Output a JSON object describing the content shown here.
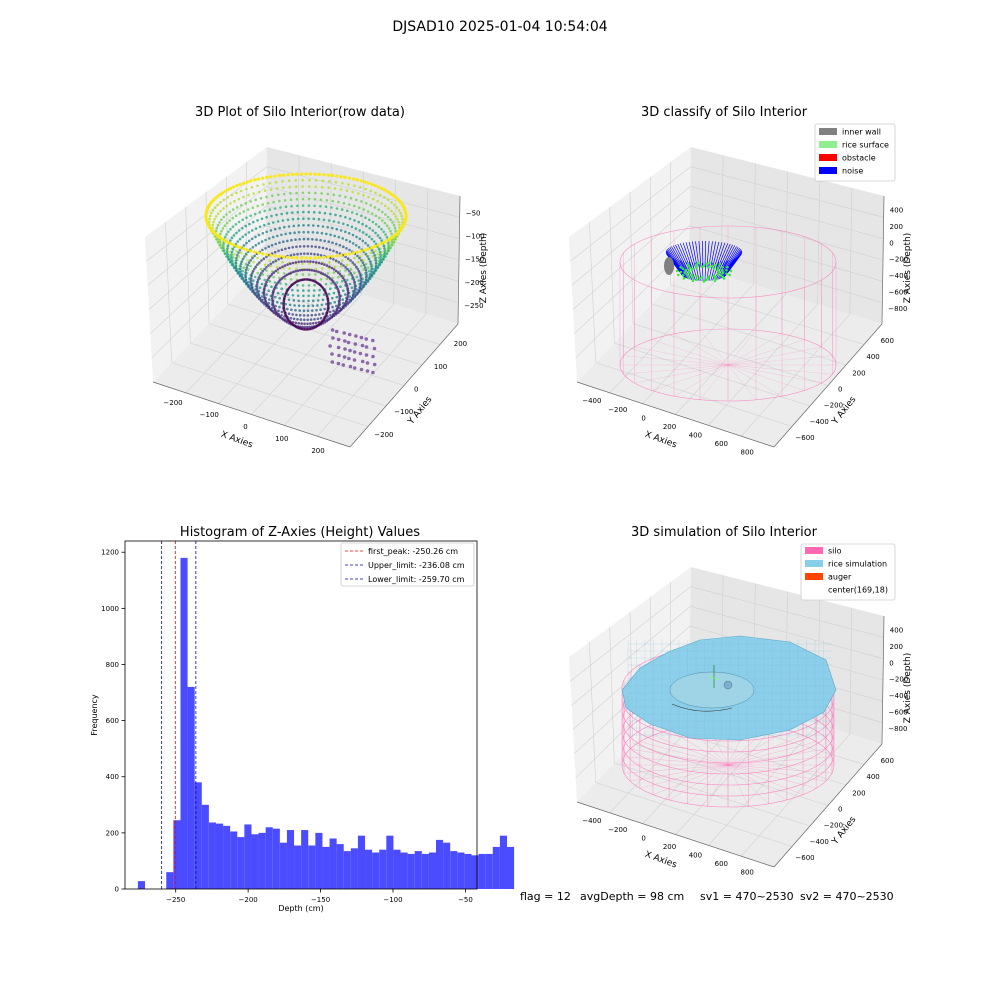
{
  "figure": {
    "suptitle": "DJSAD10 2025-01-04 10:54:04",
    "status": {
      "flag": "flag = 12",
      "avg_depth": "avgDepth = 98 cm",
      "sv1": "sv1 = 470~2530",
      "sv2": "sv2 = 470~2530"
    }
  },
  "colors": {
    "histogram_bar": "#4b4bff",
    "first_peak_line": "#ff0000",
    "limit_line": "#0000cc",
    "inner_wall": "#808080",
    "rice_surface": "#90ee90",
    "obstacle": "#ff0000",
    "noise": "#0000ff",
    "silo": "#ff69b4",
    "rice_simulation": "#87ceeb",
    "auger": "#ff4500",
    "pane": "#f2f2f2",
    "pane_right": "#e6e6e6"
  },
  "chart_data": [
    {
      "type": "scatter",
      "projection": "3d",
      "title": "3D Plot of Silo Interior(row data)",
      "xlabel": "X Axies",
      "ylabel": "Y Axies",
      "zlabel": "Z Axies (Depth)",
      "xticks": [
        "−200",
        "−100",
        "0",
        "100",
        "200"
      ],
      "yticks": [
        "−200",
        "−100",
        "0",
        "100",
        "200"
      ],
      "zticks": [
        "−50",
        "−100",
        "−150",
        "−200",
        "−250"
      ],
      "zlim": [
        -270,
        -40
      ],
      "colormap": "viridis",
      "grid": true
    },
    {
      "type": "scatter",
      "projection": "3d",
      "title": "3D classify of Silo Interior",
      "xlabel": "X Axies",
      "ylabel": "Y Axies",
      "zlabel": "Z Axies (Depth)",
      "xticks": [
        "−400",
        "−200",
        "0",
        "200",
        "400",
        "600",
        "800"
      ],
      "yticks": [
        "−600",
        "−400",
        "−200",
        "0",
        "200",
        "400",
        "600"
      ],
      "zticks": [
        "400",
        "200",
        "0",
        "−200",
        "−400",
        "−600",
        "−800"
      ],
      "legend": {
        "placement": "top-right",
        "entries": [
          "inner wall",
          "rice surface",
          "obstacle",
          "noise"
        ]
      },
      "grid": true
    },
    {
      "type": "bar",
      "title": "Histogram of Z-Axies (Height) Values",
      "xlabel": "Depth (cm)",
      "ylabel": "Frequency",
      "xlim": [
        -285,
        -42
      ],
      "ylim": [
        0,
        1240
      ],
      "xticks": [
        {
          "value": -250,
          "label": "−250"
        },
        {
          "value": -200,
          "label": "−200"
        },
        {
          "value": -150,
          "label": "−150"
        },
        {
          "value": -100,
          "label": "−100"
        },
        {
          "value": -50,
          "label": "−50"
        }
      ],
      "yticks": [
        {
          "value": 0,
          "label": "0"
        },
        {
          "value": 200,
          "label": "200"
        },
        {
          "value": 400,
          "label": "400"
        },
        {
          "value": 600,
          "label": "600"
        },
        {
          "value": 800,
          "label": "800"
        },
        {
          "value": 1000,
          "label": "1000"
        },
        {
          "value": 1200,
          "label": "1200"
        }
      ],
      "bin_start": -281,
      "bin_width": 4.9,
      "values": [
        0,
        28,
        0,
        0,
        0,
        60,
        245,
        1180,
        720,
        380,
        300,
        237,
        233,
        225,
        205,
        185,
        230,
        195,
        200,
        220,
        215,
        165,
        210,
        155,
        210,
        155,
        200,
        150,
        180,
        160,
        135,
        145,
        190,
        140,
        130,
        140,
        190,
        140,
        130,
        125,
        135,
        125,
        130,
        175,
        165,
        135,
        130,
        125,
        120,
        125,
        125,
        150,
        190,
        150
      ],
      "vlines": [
        {
          "x": -250.26,
          "label": "first_peak: -250.26 cm",
          "style": "dashed",
          "color": "#ff0000"
        },
        {
          "x": -236.08,
          "label": "Upper_limit: -236.08 cm",
          "style": "dashed",
          "color": "#0000cc"
        },
        {
          "x": -259.7,
          "label": "Lower_limit: -259.70 cm",
          "style": "dashed",
          "color": "#0000cc"
        }
      ],
      "legend": {
        "placement": "top-right"
      },
      "grid": false
    },
    {
      "type": "scatter",
      "projection": "3d",
      "title": "3D simulation of Silo Interior",
      "xlabel": "X Axies",
      "ylabel": "Y Axies",
      "zlabel": "Z Axies (Depth)",
      "xticks": [
        "−400",
        "−200",
        "0",
        "200",
        "400",
        "600",
        "800"
      ],
      "yticks": [
        "−600",
        "−400",
        "−200",
        "0",
        "200",
        "400",
        "600"
      ],
      "zticks": [
        "400",
        "200",
        "0",
        "−200",
        "−400",
        "−600",
        "−800"
      ],
      "legend": {
        "placement": "top-right",
        "entries": [
          "silo",
          "rice simulation",
          "auger",
          "center(169,18)"
        ]
      },
      "grid": true
    }
  ]
}
